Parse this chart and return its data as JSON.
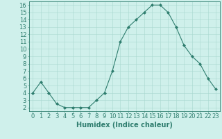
{
  "x": [
    0,
    1,
    2,
    3,
    4,
    5,
    6,
    7,
    8,
    9,
    10,
    11,
    12,
    13,
    14,
    15,
    16,
    17,
    18,
    19,
    20,
    21,
    22,
    23
  ],
  "y": [
    4,
    5.5,
    4,
    2.5,
    2,
    2,
    2,
    2,
    3,
    4,
    7,
    11,
    13,
    14,
    15,
    16,
    16,
    15,
    13,
    10.5,
    9,
    8,
    6,
    4.5
  ],
  "line_color": "#2e7d6e",
  "marker": "D",
  "marker_size": 2,
  "bg_color": "#cff0eb",
  "grid_color": "#a8d8d0",
  "xlabel": "Humidex (Indice chaleur)",
  "xlim": [
    -0.5,
    23.5
  ],
  "ylim": [
    1.5,
    16.5
  ],
  "yticks": [
    2,
    3,
    4,
    5,
    6,
    7,
    8,
    9,
    10,
    11,
    12,
    13,
    14,
    15,
    16
  ],
  "xticks": [
    0,
    1,
    2,
    3,
    4,
    5,
    6,
    7,
    8,
    9,
    10,
    11,
    12,
    13,
    14,
    15,
    16,
    17,
    18,
    19,
    20,
    21,
    22,
    23
  ],
  "axis_color": "#2e7d6e",
  "tick_color": "#2e7d6e",
  "xlabel_color": "#2e7d6e",
  "xlabel_fontsize": 7,
  "tick_fontsize": 6
}
